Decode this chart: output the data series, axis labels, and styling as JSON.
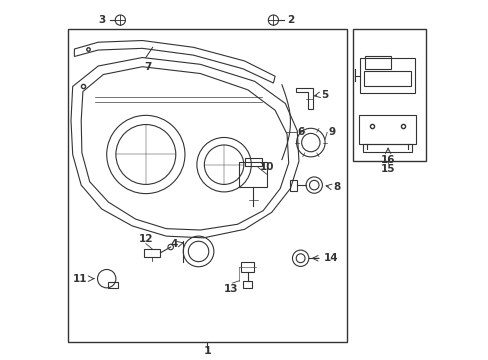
{
  "bg_color": "#ffffff",
  "line_color": "#333333",
  "lw": 0.8
}
